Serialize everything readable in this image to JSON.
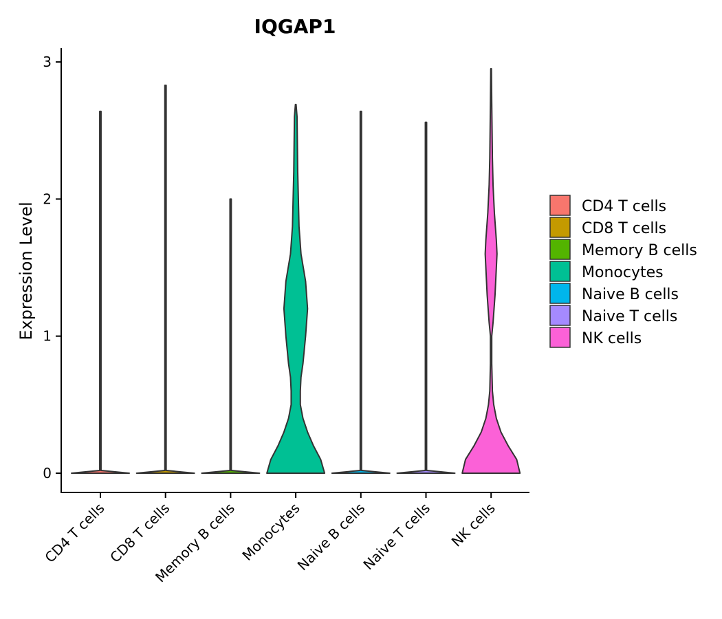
{
  "chart_data": {
    "type": "violin",
    "title": "IQGAP1",
    "xlabel": "",
    "ylabel": "Expression Level",
    "ylim": [
      -0.14,
      3.1
    ],
    "yticks": [
      0,
      1,
      2,
      3
    ],
    "legend_position": "right",
    "categories": [
      "CD4 T cells",
      "CD8 T cells",
      "Memory B cells",
      "Monocytes",
      "Naive B cells",
      "Naive T cells",
      "NK cells"
    ],
    "colors": [
      "#F8766D",
      "#C49A00",
      "#53B400",
      "#00C094",
      "#00B6EB",
      "#A58AFF",
      "#FB61D7"
    ],
    "series": [
      {
        "name": "CD4 T cells",
        "max": 2.64,
        "profile": [
          [
            0,
            0.44
          ],
          [
            0.02,
            0.01
          ],
          [
            2.64,
            0.01
          ]
        ]
      },
      {
        "name": "CD8 T cells",
        "max": 2.83,
        "profile": [
          [
            0,
            0.44
          ],
          [
            0.02,
            0.01
          ],
          [
            2.83,
            0.01
          ]
        ]
      },
      {
        "name": "Memory B cells",
        "max": 2.0,
        "profile": [
          [
            0,
            0.44
          ],
          [
            0.02,
            0.01
          ],
          [
            2.0,
            0.01
          ]
        ]
      },
      {
        "name": "Monocytes",
        "max": 2.69,
        "profile": [
          [
            0,
            0.44
          ],
          [
            0.1,
            0.38
          ],
          [
            0.2,
            0.27
          ],
          [
            0.3,
            0.18
          ],
          [
            0.4,
            0.11
          ],
          [
            0.5,
            0.07
          ],
          [
            0.6,
            0.07
          ],
          [
            0.7,
            0.08
          ],
          [
            0.8,
            0.11
          ],
          [
            1.0,
            0.15
          ],
          [
            1.2,
            0.18
          ],
          [
            1.4,
            0.15
          ],
          [
            1.6,
            0.08
          ],
          [
            1.8,
            0.05
          ],
          [
            2.0,
            0.04
          ],
          [
            2.2,
            0.03
          ],
          [
            2.4,
            0.025
          ],
          [
            2.6,
            0.02
          ],
          [
            2.69,
            0.005
          ]
        ]
      },
      {
        "name": "Naive B cells",
        "max": 2.64,
        "profile": [
          [
            0,
            0.44
          ],
          [
            0.02,
            0.01
          ],
          [
            2.64,
            0.01
          ]
        ]
      },
      {
        "name": "Naive T cells",
        "max": 2.56,
        "profile": [
          [
            0,
            0.44
          ],
          [
            0.02,
            0.01
          ],
          [
            2.56,
            0.01
          ]
        ]
      },
      {
        "name": "NK cells",
        "max": 2.95,
        "profile": [
          [
            0,
            0.44
          ],
          [
            0.1,
            0.39
          ],
          [
            0.2,
            0.26
          ],
          [
            0.3,
            0.15
          ],
          [
            0.4,
            0.08
          ],
          [
            0.5,
            0.04
          ],
          [
            0.6,
            0.02
          ],
          [
            0.8,
            0.01
          ],
          [
            1.0,
            0.01
          ],
          [
            1.1,
            0.03
          ],
          [
            1.3,
            0.06
          ],
          [
            1.5,
            0.08
          ],
          [
            1.6,
            0.09
          ],
          [
            1.7,
            0.08
          ],
          [
            1.9,
            0.05
          ],
          [
            2.1,
            0.03
          ],
          [
            2.3,
            0.02
          ],
          [
            2.5,
            0.015
          ],
          [
            2.7,
            0.01
          ],
          [
            2.95,
            0.005
          ]
        ]
      }
    ]
  }
}
